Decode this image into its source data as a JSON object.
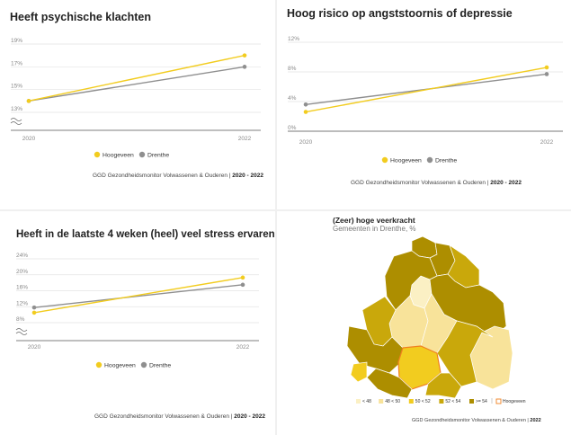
{
  "colors": {
    "hoogeveen": "#f2cc1f",
    "drenthe": "#8f8f8f"
  },
  "chart_data": [
    {
      "type": "line",
      "title": "Heeft psychische klachten",
      "x": [
        "2020",
        "2022"
      ],
      "yticks": [
        "19%",
        "17%",
        "15%",
        "13%"
      ],
      "ylim": [
        13,
        19
      ],
      "series": [
        {
          "name": "Hoogeveen",
          "values": [
            14.0,
            18.0
          ]
        },
        {
          "name": "Drenthe",
          "values": [
            14.0,
            17.0
          ]
        }
      ],
      "legend_position": "bottom",
      "grid": true,
      "source": "GGD Gezondheidsmonitor Volwassenen & Ouderen",
      "source_years": "2020 - 2022"
    },
    {
      "type": "line",
      "title": "Hoog risico op angststoornis of depressie",
      "x": [
        "2020",
        "2022"
      ],
      "yticks": [
        "12%",
        "8%",
        "4%",
        "0%"
      ],
      "ylim": [
        0,
        12
      ],
      "series": [
        {
          "name": "Hoogeveen",
          "values": [
            2.6,
            8.6
          ]
        },
        {
          "name": "Drenthe",
          "values": [
            3.6,
            7.7
          ]
        }
      ],
      "legend_position": "bottom",
      "grid": true,
      "source": "GGD Gezondheidsmonitor Volwassenen & Ouderen",
      "source_years": "2020 - 2022"
    },
    {
      "type": "line",
      "title": "Heeft in de laatste 4 weken (heel) veel stress ervaren",
      "x": [
        "2020",
        "2022"
      ],
      "yticks": [
        "24%",
        "20%",
        "16%",
        "12%",
        "8%"
      ],
      "ylim": [
        8,
        24
      ],
      "series": [
        {
          "name": "Hoogeveen",
          "values": [
            10.5,
            19.3
          ]
        },
        {
          "name": "Drenthe",
          "values": [
            11.8,
            17.5
          ]
        }
      ],
      "legend_position": "bottom",
      "grid": true,
      "source": "GGD Gezondheidsmonitor Volwassenen & Ouderen",
      "source_years": "2020 - 2022"
    }
  ],
  "map": {
    "title": "(Zeer) hoge veerkracht",
    "subtitle": "Gemeenten in Drenthe, %",
    "legend": [
      {
        "label": "< 48",
        "color": "#fbf0c4"
      },
      {
        "label": "48 < 50",
        "color": "#f8e39a"
      },
      {
        "label": "50 < 52",
        "color": "#f2cc1f"
      },
      {
        "label": "52 < 54",
        "color": "#c9a80b"
      },
      {
        "label": ">= 54",
        "color": "#ad8e00"
      }
    ],
    "highlight_label": "Hoogeveen",
    "highlight_color": "#f08020",
    "source": "GGD Gezondheidsmonitor Volwassenen & Ouderen",
    "source_years": "2022"
  }
}
